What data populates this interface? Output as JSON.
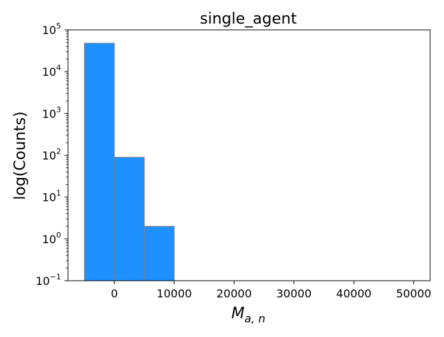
{
  "chart_data": {
    "type": "bar",
    "title": "single_agent",
    "xlabel_base": "M",
    "xlabel_subscript": "a, n",
    "ylabel": "log(Counts)",
    "y_scale": "log",
    "ylim": [
      0.1,
      100000
    ],
    "xlim": [
      -7750,
      52750
    ],
    "grid": false,
    "bar_color": "#1e90ff",
    "bar_edge_color": "#808080",
    "bins": [
      {
        "x0": -5000,
        "x1": 0,
        "count": 48000
      },
      {
        "x0": 0,
        "x1": 5000,
        "count": 90
      },
      {
        "x0": 5000,
        "x1": 10000,
        "count": 2
      }
    ],
    "x_ticks": [
      {
        "value": 0,
        "label": "0"
      },
      {
        "value": 10000,
        "label": "10000"
      },
      {
        "value": 20000,
        "label": "20000"
      },
      {
        "value": 30000,
        "label": "30000"
      },
      {
        "value": 40000,
        "label": "40000"
      },
      {
        "value": 50000,
        "label": "50000"
      }
    ],
    "y_ticks": [
      {
        "exp": -1,
        "base": "10",
        "sup": "−1"
      },
      {
        "exp": 0,
        "base": "10",
        "sup": "0"
      },
      {
        "exp": 1,
        "base": "10",
        "sup": "1"
      },
      {
        "exp": 2,
        "base": "10",
        "sup": "2"
      },
      {
        "exp": 3,
        "base": "10",
        "sup": "3"
      },
      {
        "exp": 4,
        "base": "10",
        "sup": "4"
      },
      {
        "exp": 5,
        "base": "10",
        "sup": "5"
      }
    ]
  }
}
